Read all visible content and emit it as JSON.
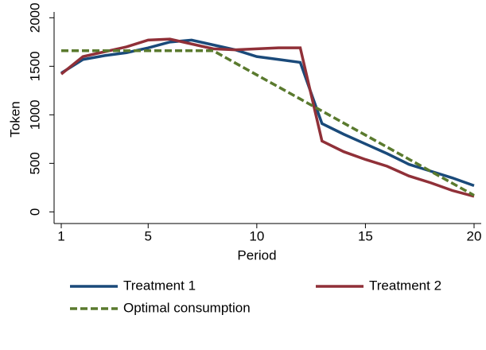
{
  "chart_data": {
    "type": "line",
    "x": [
      1,
      2,
      3,
      4,
      5,
      6,
      7,
      8,
      9,
      10,
      11,
      12,
      13,
      14,
      15,
      16,
      17,
      18,
      19,
      20
    ],
    "series": [
      {
        "name": "Treatment 1",
        "color": "#1a4a7a",
        "values": [
          1430,
          1570,
          1610,
          1640,
          1690,
          1750,
          1770,
          1720,
          1670,
          1600,
          1570,
          1540,
          910,
          800,
          700,
          600,
          490,
          420,
          350,
          270
        ]
      },
      {
        "name": "Treatment 2",
        "color": "#903038",
        "values": [
          1420,
          1600,
          1650,
          1700,
          1770,
          1780,
          1730,
          1680,
          1670,
          1680,
          1690,
          1690,
          730,
          620,
          540,
          470,
          370,
          300,
          220,
          160
        ]
      },
      {
        "name": "Optimal consumption",
        "color": "#5a7a2e",
        "dashed": true,
        "values": [
          1660,
          1660,
          1660,
          1660,
          1660,
          1660,
          1660,
          1660,
          1535,
          1411,
          1287,
          1163,
          1039,
          915,
          791,
          667,
          543,
          419,
          295,
          170
        ]
      }
    ],
    "xlabel": "Period",
    "ylabel": "Token",
    "xlim": [
      0.67,
      20.33
    ],
    "xticks": [
      1,
      5,
      10,
      15,
      20
    ],
    "ylim": [
      -120,
      2060
    ],
    "yticks": [
      0,
      500,
      1000,
      1500,
      2000
    ]
  }
}
